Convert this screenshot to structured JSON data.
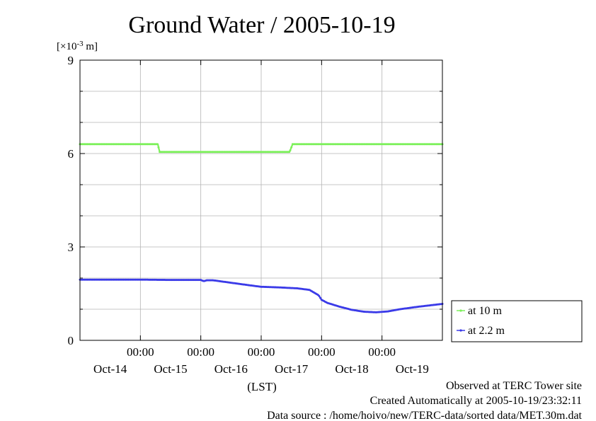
{
  "chart_data": {
    "type": "line",
    "title": "Ground Water / 2005-10-19",
    "yunit_base": "[×10",
    "yunit_exp": "-3",
    "yunit_tail": " m]",
    "xlabel": "(LST)",
    "ylim": [
      0,
      9
    ],
    "yticks": [
      0,
      3,
      6,
      9
    ],
    "ytick_labels": [
      "0",
      "3",
      "6",
      "9"
    ],
    "xlim": [
      0,
      6
    ],
    "xticks": [
      1,
      2,
      3,
      4,
      5
    ],
    "xtick_time_labels": [
      "00:00",
      "00:00",
      "00:00",
      "00:00",
      "00:00"
    ],
    "xday_positions": [
      0.5,
      1.5,
      2.5,
      3.5,
      4.5,
      5.5
    ],
    "xday_labels": [
      "Oct-14",
      "Oct-15",
      "Oct-16",
      "Oct-17",
      "Oct-18",
      "Oct-19"
    ],
    "grid": true,
    "series": [
      {
        "name": "at 10 m",
        "color": "#7cf05a",
        "x": [
          0,
          1.29,
          1.3,
          1.32,
          3.47,
          3.49,
          3.52,
          6
        ],
        "y": [
          6.3,
          6.3,
          6.2,
          6.05,
          6.05,
          6.15,
          6.3,
          6.3
        ]
      },
      {
        "name": "at 2.2 m",
        "color": "#3b3be8",
        "x": [
          0,
          0.5,
          1.0,
          1.5,
          2.0,
          2.05,
          2.1,
          2.2,
          2.5,
          2.8,
          3.0,
          3.3,
          3.6,
          3.8,
          3.95,
          4.0,
          4.1,
          4.3,
          4.5,
          4.7,
          4.9,
          5.1,
          5.3,
          5.6,
          6.0
        ],
        "y": [
          1.95,
          1.95,
          1.95,
          1.94,
          1.94,
          1.9,
          1.93,
          1.93,
          1.85,
          1.77,
          1.72,
          1.7,
          1.67,
          1.62,
          1.45,
          1.3,
          1.2,
          1.08,
          0.98,
          0.92,
          0.9,
          0.93,
          1.0,
          1.08,
          1.17
        ]
      }
    ],
    "legend_position": "right"
  },
  "footer": {
    "line1": "Observed at TERC Tower site",
    "line2": "Created Automatically at 2005-10-19/23:32:11",
    "line3": "Data source : /home/hoivo/new/TERC-data/sorted  data/MET.30m.dat"
  }
}
